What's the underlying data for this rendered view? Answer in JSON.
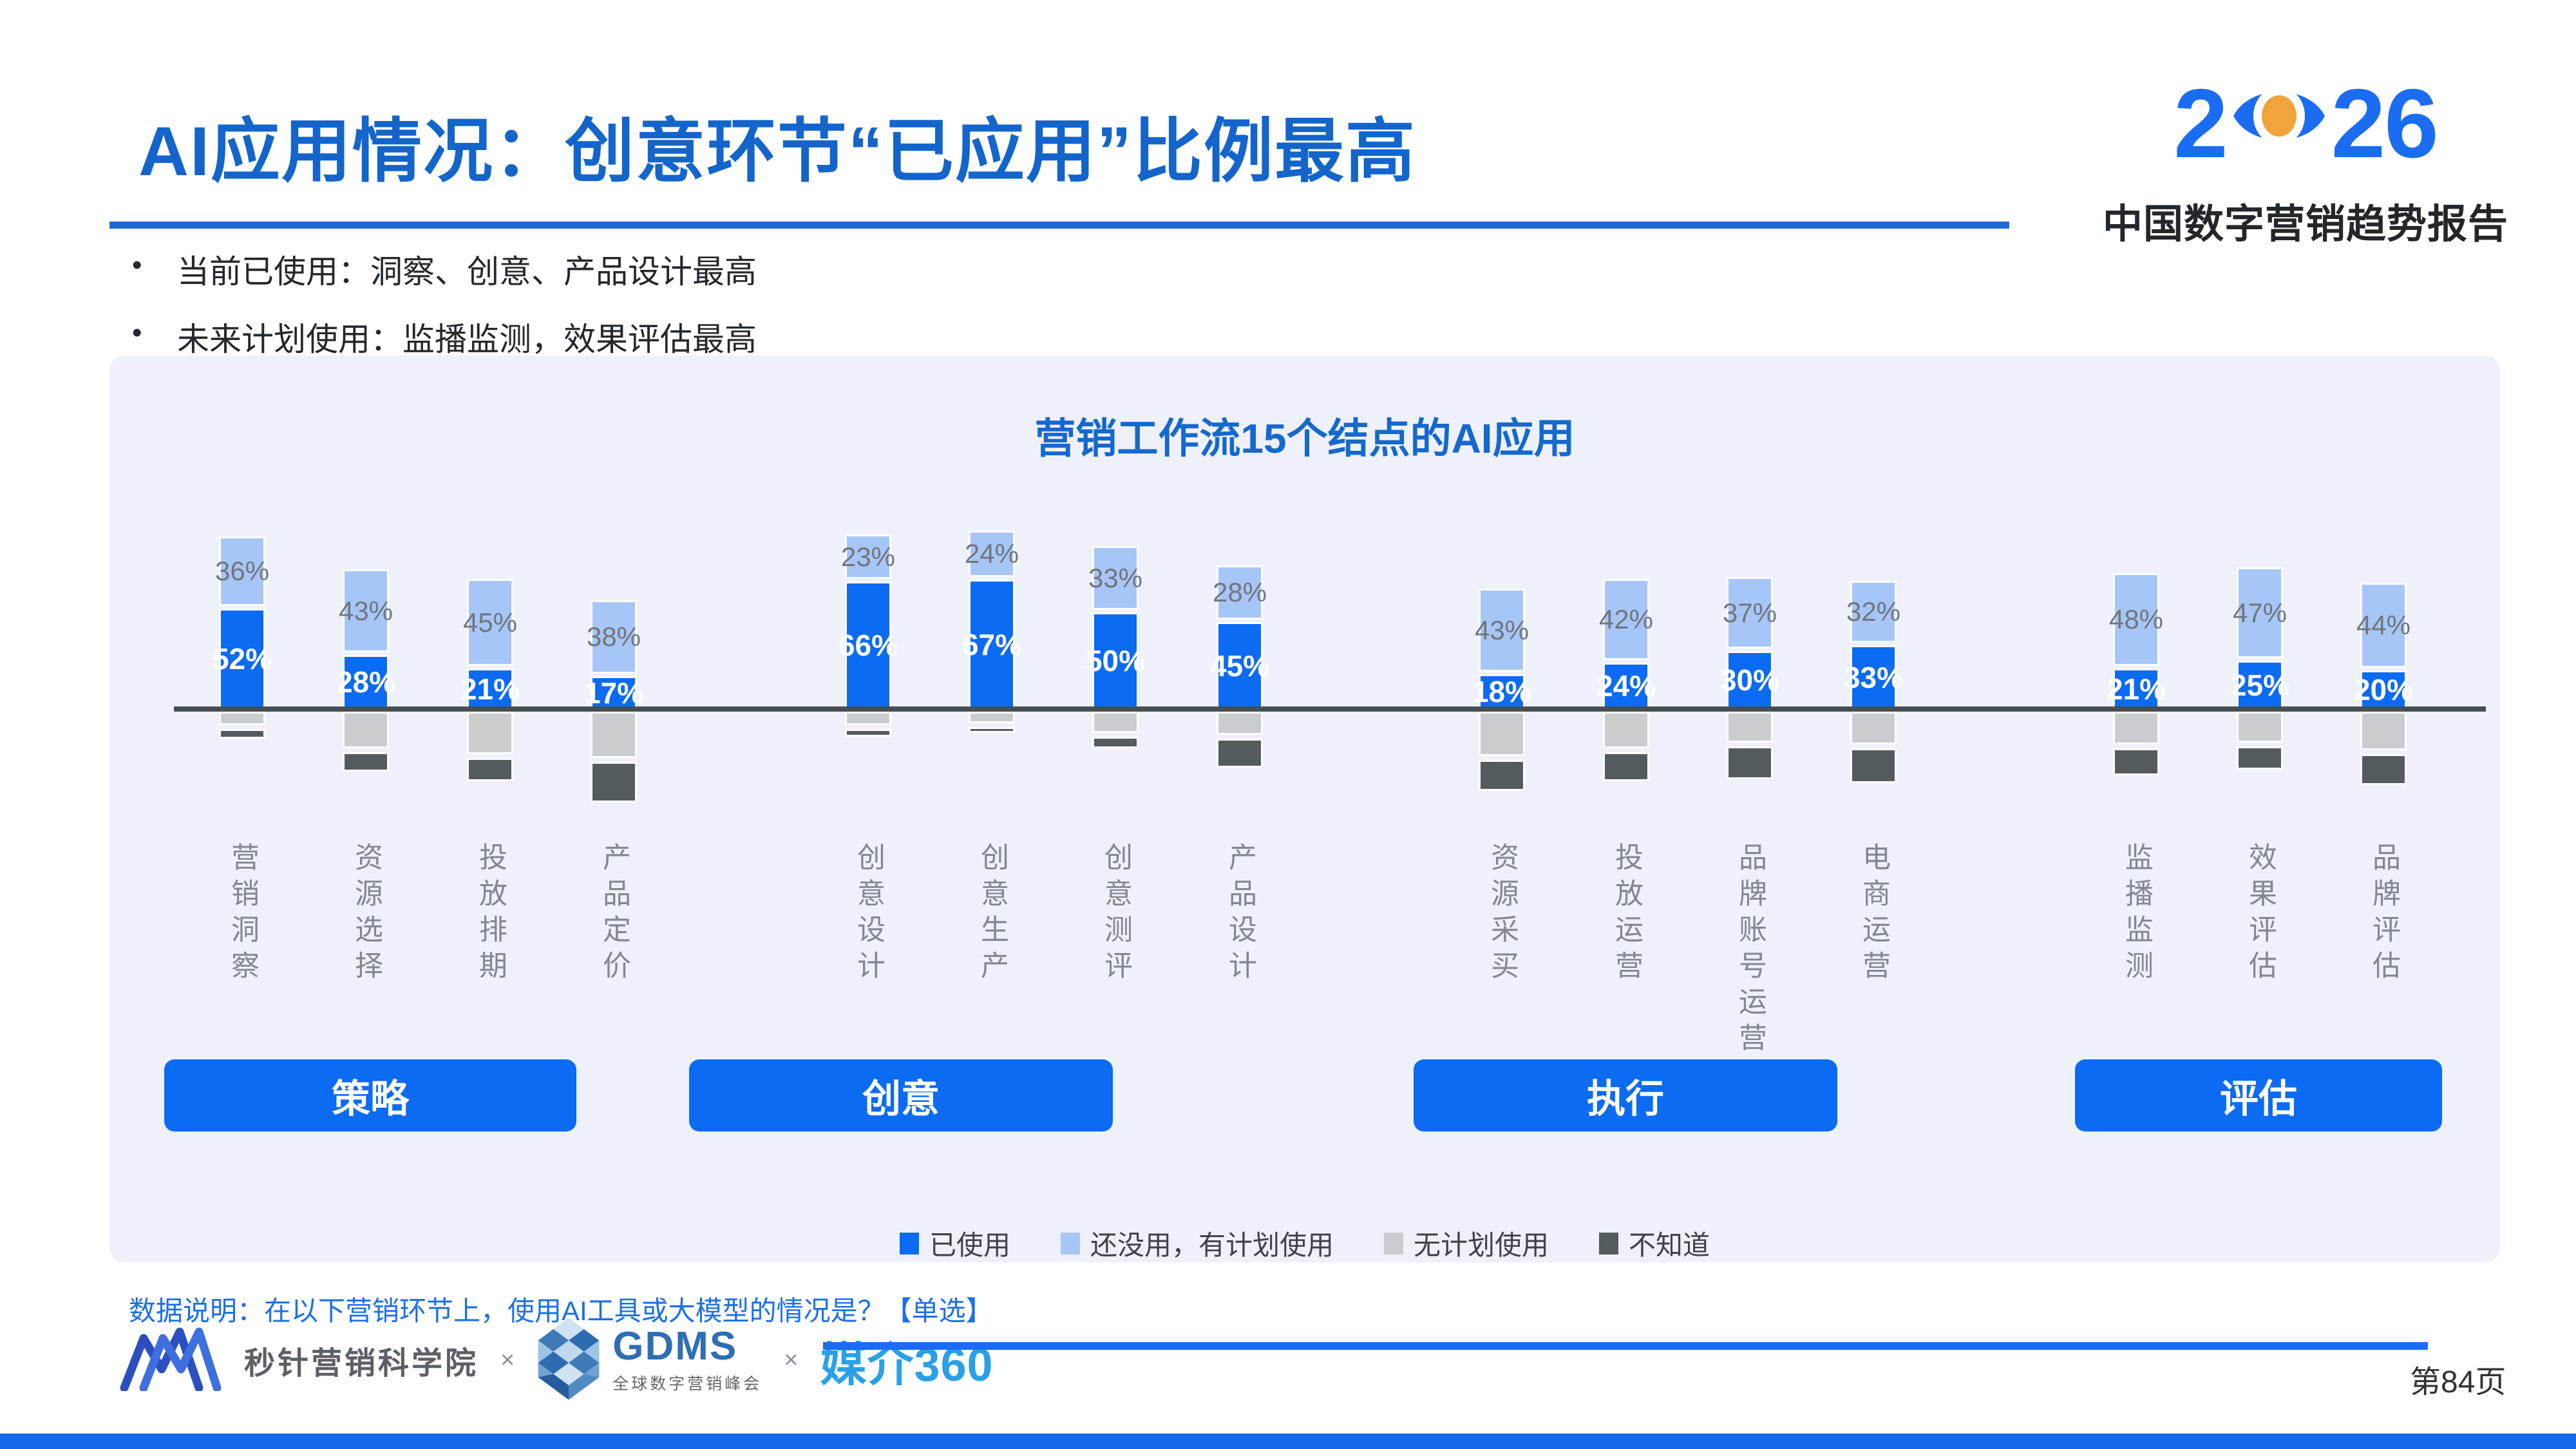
{
  "header": {
    "title": "AI应用情况：创意环节“已应用”比例最高",
    "logo": {
      "year_left": "2",
      "year_right": "26",
      "subtitle": "中国数字营销趋势报告",
      "blue": "#1A6DF3",
      "orange": "#F2A43C"
    }
  },
  "bullets": [
    {
      "text": "当前已使用：洞察、创意、产品设计最高"
    },
    {
      "text": "未来计划使用：监播监测，效果评估最高"
    }
  ],
  "chart_data": {
    "type": "bar",
    "stacked": true,
    "title": "营销工作流15个结点的AI应用",
    "unit": "%",
    "baseline": 0,
    "series": [
      "已使用",
      "还没用，有计划使用",
      "无计划使用",
      "不知道"
    ],
    "series_colors": [
      "#0B6BF3",
      "#A7C6F8",
      "#CACDCF",
      "#535B5E"
    ],
    "labeled_series": [
      "已使用",
      "还没用，有计划使用"
    ],
    "layout_note": "已使用+还没用 stacked above axis; 无计划使用+不知道 hang below axis",
    "groups": [
      {
        "label": "策略",
        "nodes": [
          {
            "name": "营销洞察",
            "values": [
              52,
              36,
              7,
              5
            ]
          },
          {
            "name": "资源选择",
            "values": [
              28,
              43,
              19,
              10
            ]
          },
          {
            "name": "投放排期",
            "values": [
              21,
              45,
              22,
              12
            ]
          },
          {
            "name": "产品定价",
            "values": [
              17,
              38,
              24,
              21
            ]
          }
        ]
      },
      {
        "label": "创意",
        "nodes": [
          {
            "name": "创意设计",
            "values": [
              66,
              23,
              7,
              4
            ]
          },
          {
            "name": "创意生产",
            "values": [
              67,
              24,
              6,
              3
            ]
          },
          {
            "name": "创意测评",
            "values": [
              50,
              33,
              11,
              6
            ]
          },
          {
            "name": "产品设计",
            "values": [
              45,
              28,
              12,
              15
            ]
          }
        ]
      },
      {
        "label": "执行",
        "nodes": [
          {
            "name": "资源采买",
            "values": [
              18,
              43,
              23,
              16
            ]
          },
          {
            "name": "投放运营",
            "values": [
              24,
              42,
              19,
              15
            ]
          },
          {
            "name": "品牌账号运营",
            "values": [
              30,
              37,
              16,
              17
            ]
          },
          {
            "name": "电商运营",
            "values": [
              33,
              32,
              17,
              18
            ]
          }
        ]
      },
      {
        "label": "评估",
        "nodes": [
          {
            "name": "监播监测",
            "values": [
              21,
              48,
              17,
              14
            ]
          },
          {
            "name": "效果评估",
            "values": [
              25,
              47,
              16,
              12
            ]
          },
          {
            "name": "品牌评估",
            "values": [
              20,
              44,
              20,
              16
            ]
          }
        ]
      }
    ]
  },
  "note": "数据说明：在以下营销环节上，使用AI工具或大模型的情况是？【单选】",
  "footer": {
    "org1": "秒针营销科学院",
    "times1": "×",
    "org2": "GDMS",
    "org2_subtitle": "全球数字营销峰会",
    "times2": "×",
    "org3": "媒介360"
  },
  "page_number": "第84页"
}
